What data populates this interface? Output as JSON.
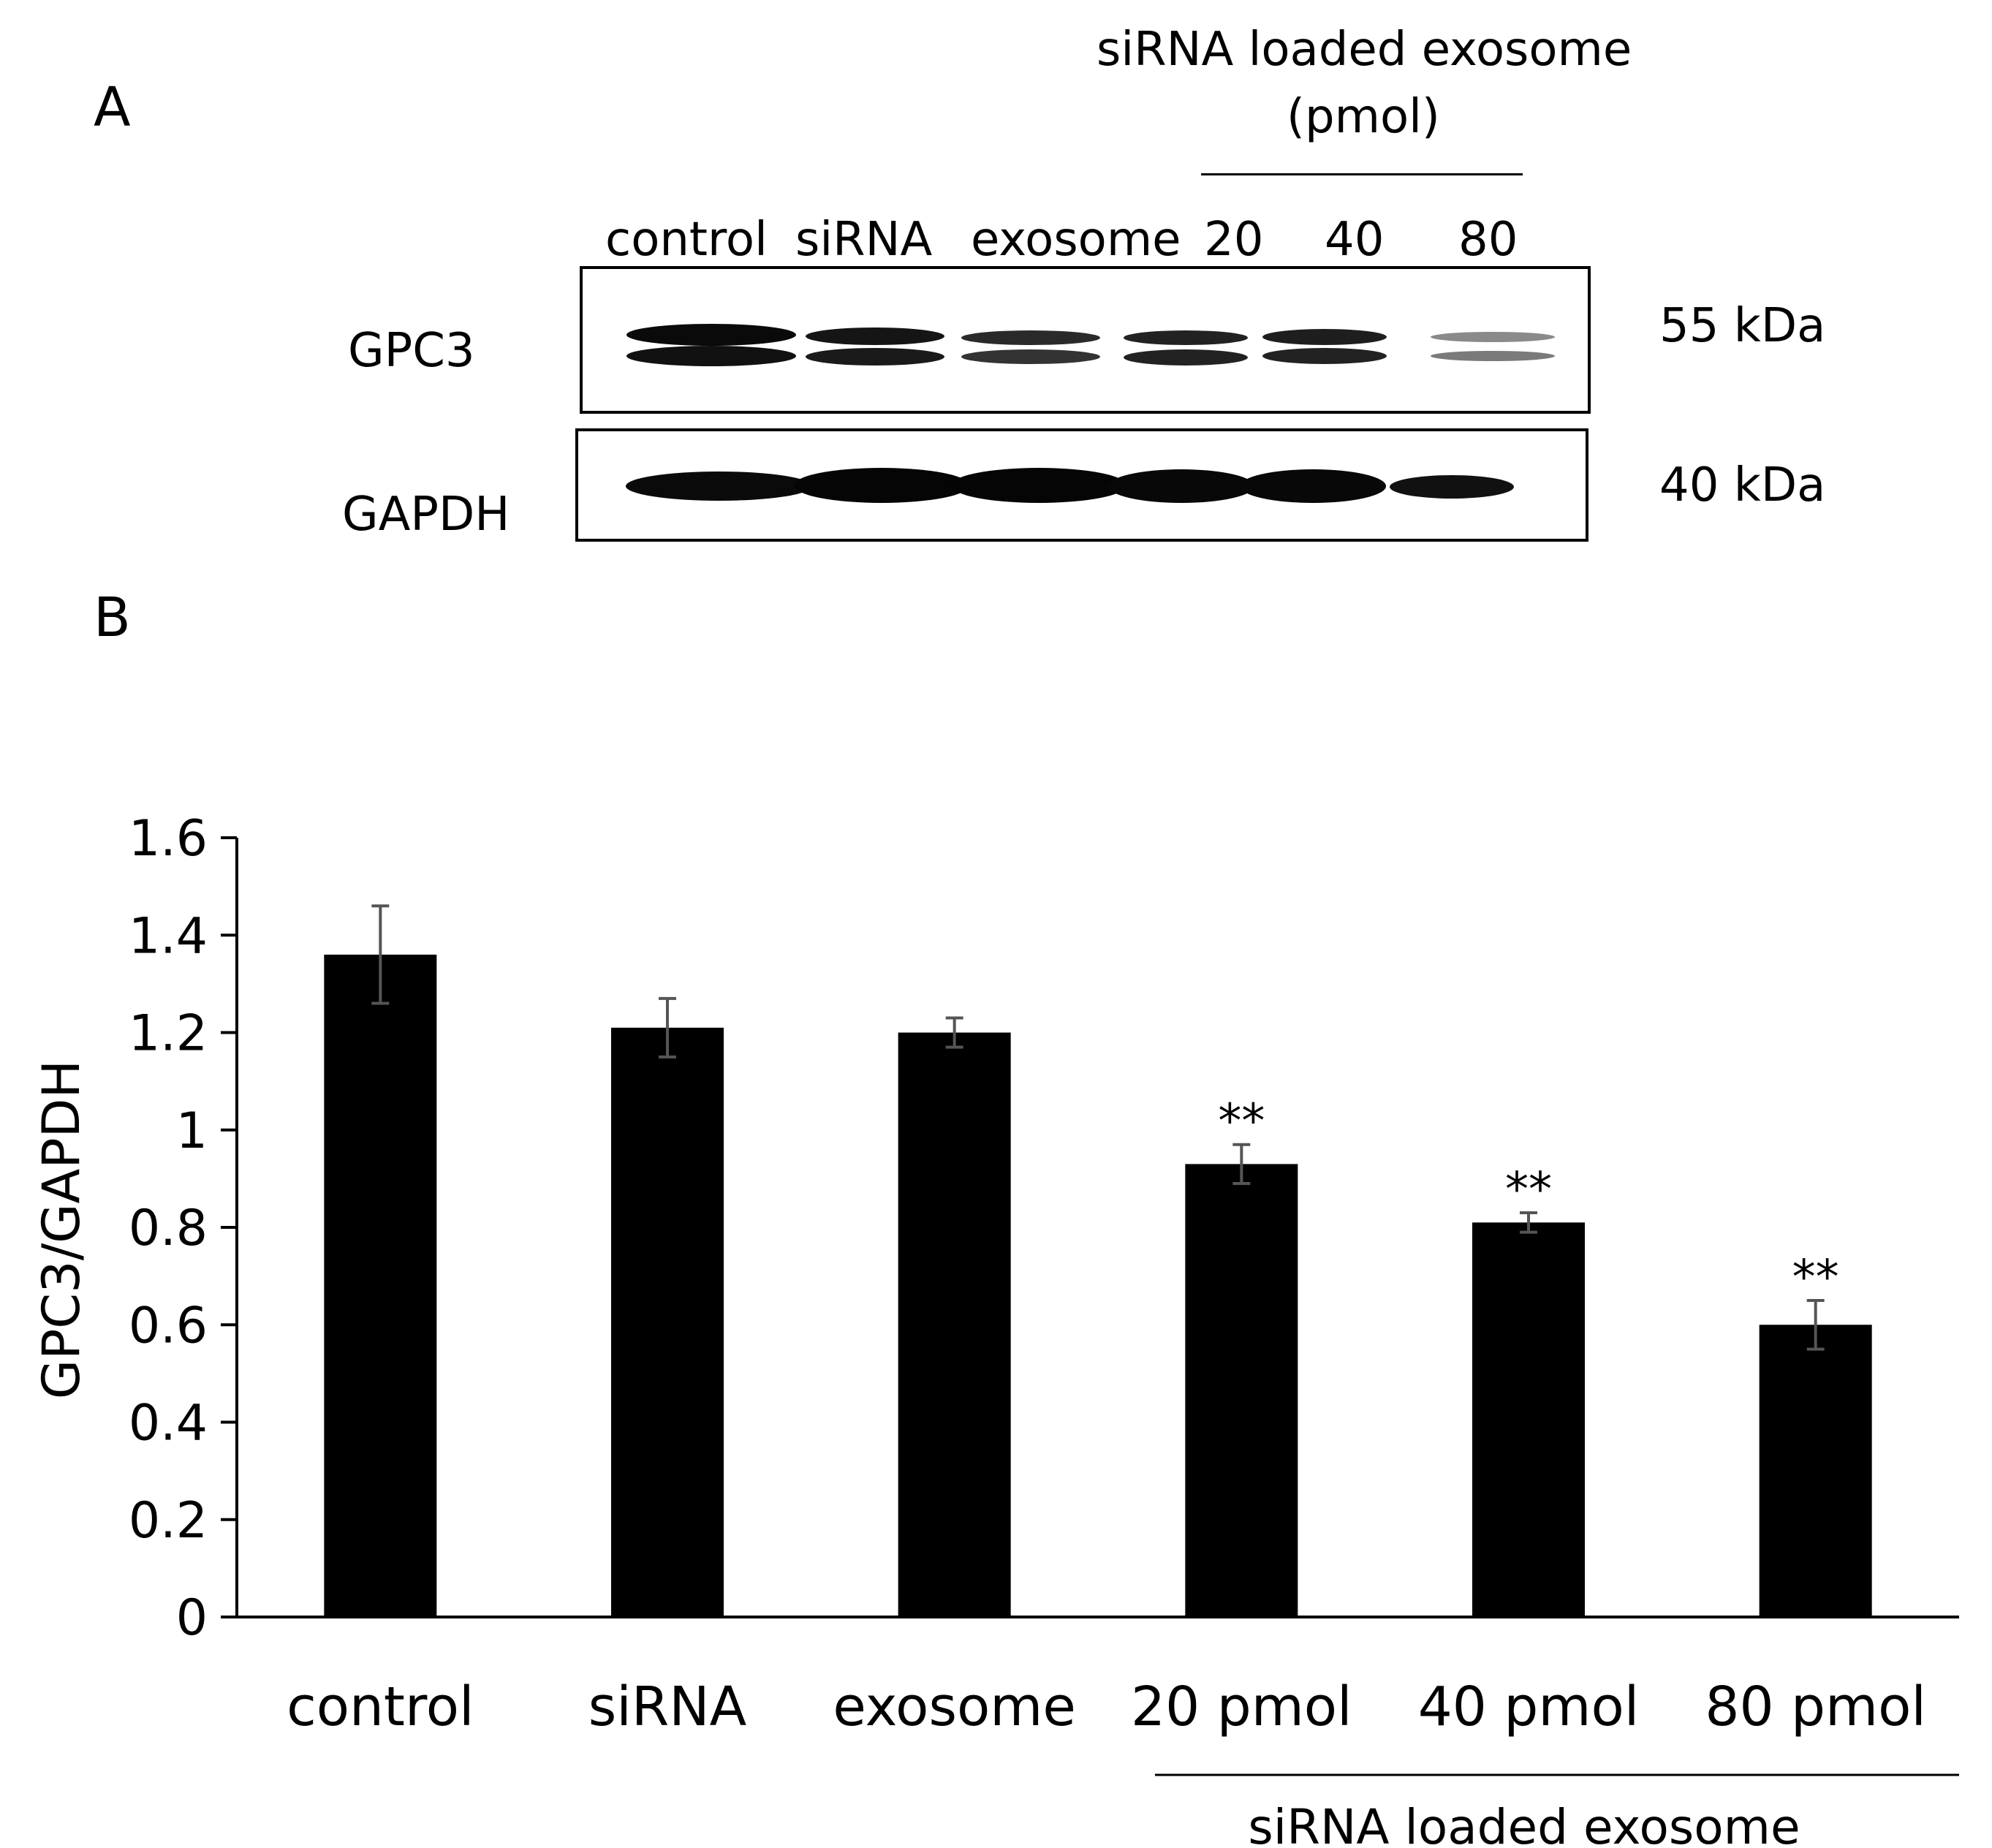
{
  "panels": {
    "a": "A",
    "b": "B"
  },
  "blot": {
    "group_title_line1": "siRNA loaded exosome",
    "group_title_line2": "(pmol)",
    "lanes": [
      "control",
      "siRNA",
      "exosome",
      "20",
      "40",
      "80"
    ],
    "rows": [
      {
        "name": "GPC3",
        "mw": "55 kDa"
      },
      {
        "name": "GAPDH",
        "mw": "40 kDa"
      }
    ]
  },
  "chart_data": {
    "type": "bar",
    "categories": [
      "control",
      "siRNA",
      "exosome",
      "20 pmol",
      "40 pmol",
      "80 pmol"
    ],
    "values": [
      1.36,
      1.21,
      1.2,
      0.93,
      0.81,
      0.6
    ],
    "errors": [
      0.1,
      0.06,
      0.03,
      0.04,
      0.02,
      0.05
    ],
    "significance": [
      "",
      "",
      "",
      "**",
      "**",
      "**"
    ],
    "ylabel": "GPC3/GAPDH",
    "ylim": [
      0,
      1.6
    ],
    "yticks": [
      0,
      0.2,
      0.4,
      0.6,
      0.8,
      1,
      1.2,
      1.4,
      1.6
    ],
    "ytick_labels": [
      "0",
      "0.2",
      "0.4",
      "0.6",
      "0.8",
      "1",
      "1.2",
      "1.4",
      "1.6"
    ],
    "group_label": "siRNA loaded exosome",
    "bar_color": "#000000",
    "error_color": "#555555",
    "grid": false
  }
}
